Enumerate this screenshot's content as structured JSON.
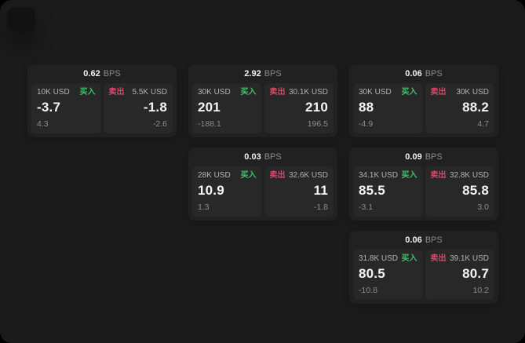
{
  "labels": {
    "bps": "BPS",
    "buy": "买入",
    "sell": "卖出"
  },
  "colors": {
    "outer_background": "#000000",
    "window_background": "#1b1b1b",
    "card_background": "#212121",
    "panel_background": "#282828",
    "buy_green": "#3ec46a",
    "sell_red": "#d8486a",
    "value_white": "#f2f2f2",
    "muted_gray": "#8c8c8c"
  },
  "cards": [
    {
      "bps": "0.62",
      "buy": {
        "amount": "10K USD",
        "price": "-3.7",
        "change": "4.3"
      },
      "sell": {
        "amount": "5.5K USD",
        "price": "-1.8",
        "change": "-2.6"
      }
    },
    {
      "bps": "2.92",
      "buy": {
        "amount": "30K USD",
        "price": "201",
        "change": "-188.1"
      },
      "sell": {
        "amount": "30.1K USD",
        "price": "210",
        "change": "196.5"
      }
    },
    {
      "bps": "0.06",
      "buy": {
        "amount": "30K USD",
        "price": "88",
        "change": "-4.9"
      },
      "sell": {
        "amount": "30K USD",
        "price": "88.2",
        "change": "4.7"
      }
    },
    {
      "bps": "0.03",
      "buy": {
        "amount": "28K USD",
        "price": "10.9",
        "change": "1.3"
      },
      "sell": {
        "amount": "32.6K USD",
        "price": "11",
        "change": "-1.8"
      }
    },
    {
      "bps": "0.09",
      "buy": {
        "amount": "34.1K USD",
        "price": "85.5",
        "change": "-3.1"
      },
      "sell": {
        "amount": "32.8K USD",
        "price": "85.8",
        "change": "3.0"
      }
    },
    {
      "bps": "0.06",
      "buy": {
        "amount": "31.8K USD",
        "price": "80.5",
        "change": "-10.8"
      },
      "sell": {
        "amount": "39.1K USD",
        "price": "80.7",
        "change": "10.2"
      }
    }
  ]
}
